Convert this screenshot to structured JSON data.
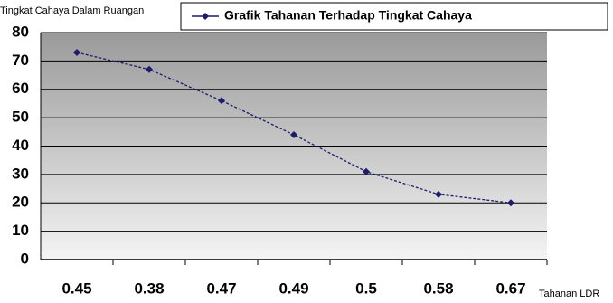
{
  "chart_data": {
    "type": "line",
    "y_label": "Tingkat Cahaya Dalam Ruangan",
    "x_label": "Tahanan LDR",
    "categories": [
      "0.45",
      "0.38",
      "0.47",
      "0.49",
      "0.5",
      "0.58",
      "0.67"
    ],
    "series": [
      {
        "name": "Grafik Tahanan Terhadap Tingkat Cahaya",
        "color": "#1c1c6b",
        "values": [
          73,
          67,
          56,
          44,
          31,
          23,
          20
        ]
      }
    ],
    "ylim": [
      0,
      80
    ],
    "yticks": [
      0,
      10,
      20,
      30,
      40,
      50,
      60,
      70,
      80
    ],
    "grid": true
  }
}
